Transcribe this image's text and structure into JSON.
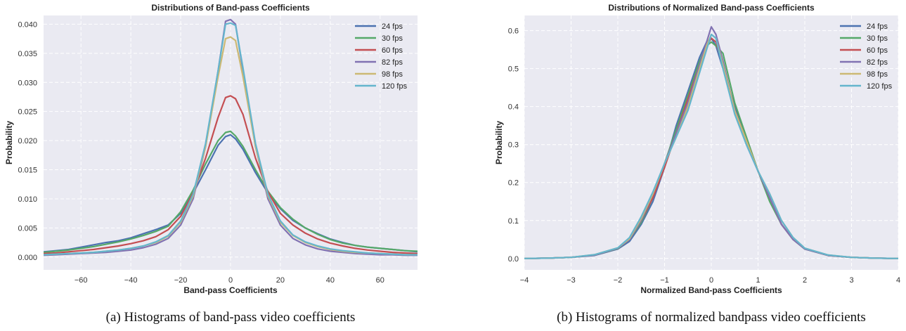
{
  "chart_data": [
    {
      "type": "line",
      "title": "Distributions of Band-pass Coefficients",
      "xlabel": "Band-pass Coefficients",
      "ylabel": "Probability",
      "xlim": [
        -75,
        75
      ],
      "ylim": [
        -0.0022,
        0.0415
      ],
      "xticks": [
        -60,
        -40,
        -20,
        0,
        20,
        40,
        60
      ],
      "yticks": [
        0.0,
        0.005,
        0.01,
        0.015,
        0.02,
        0.025,
        0.03,
        0.035,
        0.04
      ],
      "xtick_labels": [
        "−60",
        "−40",
        "−20",
        "0",
        "20",
        "40",
        "60"
      ],
      "ytick_labels": [
        "0.000",
        "0.005",
        "0.010",
        "0.015",
        "0.020",
        "0.025",
        "0.030",
        "0.035",
        "0.040"
      ],
      "grid": true,
      "legend_position": "top-right",
      "x": [
        -75,
        -70,
        -65,
        -60,
        -55,
        -50,
        -45,
        -40,
        -35,
        -30,
        -25,
        -20,
        -15,
        -10,
        -5,
        -2,
        0,
        2,
        5,
        10,
        15,
        20,
        25,
        30,
        35,
        40,
        45,
        50,
        55,
        60,
        65,
        70,
        75
      ],
      "series": [
        {
          "name": "24 fps",
          "color": "#4c72b0",
          "values": [
            0.0009,
            0.0011,
            0.0013,
            0.0017,
            0.0021,
            0.0025,
            0.0028,
            0.0033,
            0.004,
            0.0047,
            0.0055,
            0.0075,
            0.011,
            0.015,
            0.0192,
            0.0207,
            0.021,
            0.0203,
            0.0185,
            0.0145,
            0.011,
            0.0083,
            0.0063,
            0.005,
            0.004,
            0.0031,
            0.0025,
            0.002,
            0.0017,
            0.0015,
            0.0013,
            0.0011,
            0.0009
          ]
        },
        {
          "name": "30 fps",
          "color": "#55a868",
          "values": [
            0.0008,
            0.001,
            0.0012,
            0.0015,
            0.0018,
            0.0022,
            0.0026,
            0.0031,
            0.0037,
            0.0044,
            0.0053,
            0.0078,
            0.0115,
            0.016,
            0.02,
            0.0214,
            0.0216,
            0.0208,
            0.019,
            0.015,
            0.0113,
            0.0085,
            0.0065,
            0.005,
            0.0039,
            0.003,
            0.0024,
            0.002,
            0.0017,
            0.0015,
            0.0013,
            0.0011,
            0.001
          ]
        },
        {
          "name": "60 fps",
          "color": "#c44e52",
          "values": [
            0.0006,
            0.0007,
            0.0009,
            0.0011,
            0.0013,
            0.0016,
            0.0019,
            0.0023,
            0.0028,
            0.0035,
            0.0047,
            0.007,
            0.011,
            0.017,
            0.024,
            0.0274,
            0.0277,
            0.0272,
            0.0245,
            0.017,
            0.0112,
            0.0075,
            0.0055,
            0.0041,
            0.0031,
            0.0024,
            0.0019,
            0.0015,
            0.0012,
            0.001,
            0.0008,
            0.0007,
            0.0006
          ]
        },
        {
          "name": "82 fps",
          "color": "#8172b2",
          "values": [
            0.0003,
            0.0004,
            0.0005,
            0.0006,
            0.0007,
            0.0008,
            0.001,
            0.0012,
            0.0016,
            0.0022,
            0.0032,
            0.0055,
            0.01,
            0.019,
            0.032,
            0.0405,
            0.0408,
            0.04,
            0.032,
            0.019,
            0.01,
            0.0055,
            0.0032,
            0.0021,
            0.0014,
            0.001,
            0.0008,
            0.0006,
            0.0005,
            0.0004,
            0.0004,
            0.0003,
            0.0003
          ]
        },
        {
          "name": "98 fps",
          "color": "#ccb974",
          "values": [
            0.0004,
            0.0005,
            0.0006,
            0.0007,
            0.0008,
            0.001,
            0.0012,
            0.0015,
            0.0019,
            0.0025,
            0.0036,
            0.006,
            0.0105,
            0.019,
            0.031,
            0.0375,
            0.0378,
            0.0372,
            0.031,
            0.019,
            0.0105,
            0.006,
            0.0037,
            0.0025,
            0.0018,
            0.0013,
            0.001,
            0.0008,
            0.0007,
            0.0006,
            0.0005,
            0.0004,
            0.0004
          ]
        },
        {
          "name": "120 fps",
          "color": "#64b5cd",
          "values": [
            0.0004,
            0.0005,
            0.0006,
            0.0007,
            0.0008,
            0.001,
            0.0012,
            0.0015,
            0.0019,
            0.0026,
            0.0037,
            0.0062,
            0.0108,
            0.0195,
            0.032,
            0.04,
            0.0402,
            0.0398,
            0.0325,
            0.0195,
            0.0108,
            0.0062,
            0.0038,
            0.0026,
            0.0019,
            0.0014,
            0.0011,
            0.0009,
            0.0007,
            0.0006,
            0.0005,
            0.0004,
            0.0004
          ]
        }
      ]
    },
    {
      "type": "line",
      "title": "Distributions of Normalized Band-pass Coefficients",
      "xlabel": "Normalized Band-pass Coefficients",
      "ylabel": "Probability",
      "xlim": [
        -4,
        4
      ],
      "ylim": [
        -0.03,
        0.64
      ],
      "xticks": [
        -4,
        -3,
        -2,
        -1,
        0,
        1,
        2,
        3,
        4
      ],
      "yticks": [
        0.0,
        0.1,
        0.2,
        0.3,
        0.4,
        0.5,
        0.6
      ],
      "xtick_labels": [
        "−4",
        "−3",
        "−2",
        "−1",
        "0",
        "1",
        "2",
        "3",
        "4"
      ],
      "ytick_labels": [
        "0.0",
        "0.1",
        "0.2",
        "0.3",
        "0.4",
        "0.5",
        "0.6"
      ],
      "grid": true,
      "legend_position": "top-right",
      "x": [
        -4,
        -3.5,
        -3,
        -2.5,
        -2,
        -1.75,
        -1.5,
        -1.25,
        -1,
        -0.75,
        -0.5,
        -0.25,
        -0.1,
        0,
        0.1,
        0.25,
        0.5,
        0.75,
        1,
        1.25,
        1.5,
        1.75,
        2,
        2.5,
        3,
        3.5,
        4
      ],
      "series": [
        {
          "name": "24 fps",
          "color": "#4c72b0",
          "values": [
            0.0,
            0.001,
            0.003,
            0.008,
            0.025,
            0.045,
            0.09,
            0.15,
            0.24,
            0.35,
            0.44,
            0.53,
            0.57,
            0.58,
            0.56,
            0.5,
            0.4,
            0.31,
            0.23,
            0.16,
            0.09,
            0.05,
            0.025,
            0.008,
            0.003,
            0.001,
            0.0
          ]
        },
        {
          "name": "30 fps",
          "color": "#55a868",
          "values": [
            0.0,
            0.001,
            0.003,
            0.009,
            0.026,
            0.05,
            0.095,
            0.16,
            0.25,
            0.34,
            0.43,
            0.52,
            0.56,
            0.57,
            0.56,
            0.54,
            0.41,
            0.32,
            0.23,
            0.15,
            0.09,
            0.05,
            0.025,
            0.008,
            0.003,
            0.001,
            0.0
          ]
        },
        {
          "name": "60 fps",
          "color": "#c44e52",
          "values": [
            0.0,
            0.001,
            0.003,
            0.009,
            0.027,
            0.05,
            0.1,
            0.16,
            0.24,
            0.33,
            0.42,
            0.51,
            0.56,
            0.58,
            0.57,
            0.51,
            0.39,
            0.31,
            0.23,
            0.16,
            0.09,
            0.05,
            0.026,
            0.008,
            0.003,
            0.001,
            0.0
          ]
        },
        {
          "name": "82 fps",
          "color": "#8172b2",
          "values": [
            0.0,
            0.001,
            0.003,
            0.009,
            0.027,
            0.05,
            0.1,
            0.17,
            0.25,
            0.33,
            0.41,
            0.51,
            0.57,
            0.61,
            0.59,
            0.52,
            0.39,
            0.3,
            0.23,
            0.16,
            0.09,
            0.05,
            0.025,
            0.008,
            0.003,
            0.001,
            0.0
          ]
        },
        {
          "name": "98 fps",
          "color": "#ccb974",
          "values": [
            0.0,
            0.001,
            0.003,
            0.01,
            0.028,
            0.052,
            0.105,
            0.17,
            0.25,
            0.32,
            0.4,
            0.5,
            0.56,
            0.59,
            0.58,
            0.51,
            0.39,
            0.31,
            0.23,
            0.17,
            0.1,
            0.055,
            0.027,
            0.009,
            0.003,
            0.001,
            0.0
          ]
        },
        {
          "name": "120 fps",
          "color": "#64b5cd",
          "values": [
            0.0,
            0.001,
            0.003,
            0.01,
            0.028,
            0.055,
            0.11,
            0.175,
            0.25,
            0.32,
            0.39,
            0.49,
            0.55,
            0.59,
            0.58,
            0.5,
            0.38,
            0.3,
            0.23,
            0.17,
            0.1,
            0.055,
            0.027,
            0.009,
            0.003,
            0.001,
            0.0
          ]
        }
      ]
    }
  ],
  "captions": {
    "a": "(a) Histograms of band-pass video coefficients",
    "b": "(b) Histograms of normalized bandpass video coefficients"
  }
}
